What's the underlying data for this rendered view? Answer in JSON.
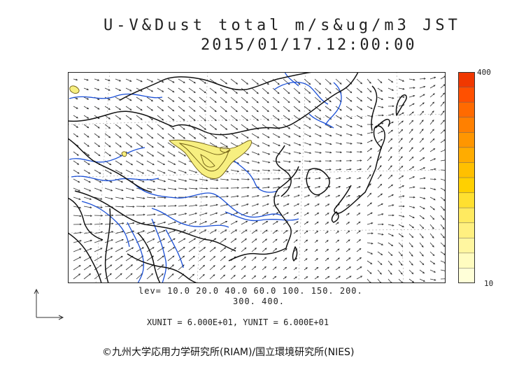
{
  "header": {
    "title": "U-V&Dust total m/s&ug/m3 JST",
    "datetime": "2015/01/17.12:00:00"
  },
  "colorbar": {
    "max_label": "400",
    "min_label": "10",
    "colors": [
      "#ffffd8",
      "#fffcc0",
      "#fff6a0",
      "#fff080",
      "#ffea60",
      "#ffe030",
      "#ffd000",
      "#ffc000",
      "#ffac00",
      "#ff9600",
      "#ff8000",
      "#ff6a00",
      "#ff5000",
      "#f03800"
    ]
  },
  "contour_levels": {
    "line1": "lev= 10.0 20.0 40.0 60.0 100. 150. 200.",
    "line2": "300. 400."
  },
  "units": {
    "text": "XUNIT = 6.000E+01, YUNIT = 6.000E+01"
  },
  "footer": {
    "credit": "©九州大学応用力学研究所(RIAM)/国立環境研究所(NIES)"
  },
  "map_style": {
    "coast_color": "#111111",
    "river_color": "#1a4fd6",
    "border_color": "#111111",
    "arrow_color": "#333333",
    "plume_edge": "#6b5a10",
    "plume_fill": "#f7ef80"
  }
}
